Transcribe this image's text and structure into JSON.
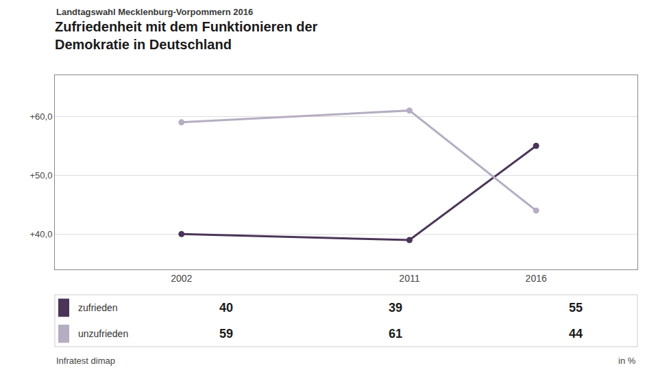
{
  "chart_data": {
    "type": "line",
    "subtitle": "Landtagswahl Mecklenburg-Vorpommern 2016",
    "title": "Zufriedenheit mit dem Funktionieren der\nDemokratie in Deutschland",
    "x": [
      2002,
      2011,
      2016
    ],
    "xlim": [
      1997,
      2020
    ],
    "xticks": [
      2002,
      2011,
      2016
    ],
    "ylim": [
      34,
      67
    ],
    "yticks": [
      {
        "value": 40,
        "label": "+40,0"
      },
      {
        "value": 50,
        "label": "+50,0"
      },
      {
        "value": 60,
        "label": "+60,0"
      }
    ],
    "series": [
      {
        "name": "zufrieden",
        "color": "#4a3558",
        "values": [
          40,
          39,
          55
        ]
      },
      {
        "name": "unzufrieden",
        "color": "#b5adc2",
        "values": [
          59,
          61,
          44
        ]
      }
    ],
    "marker": "circle",
    "line_style": "solid",
    "grid": true,
    "legend": "bottom",
    "annotations": [
      "Infratest dimap",
      "in %"
    ]
  }
}
